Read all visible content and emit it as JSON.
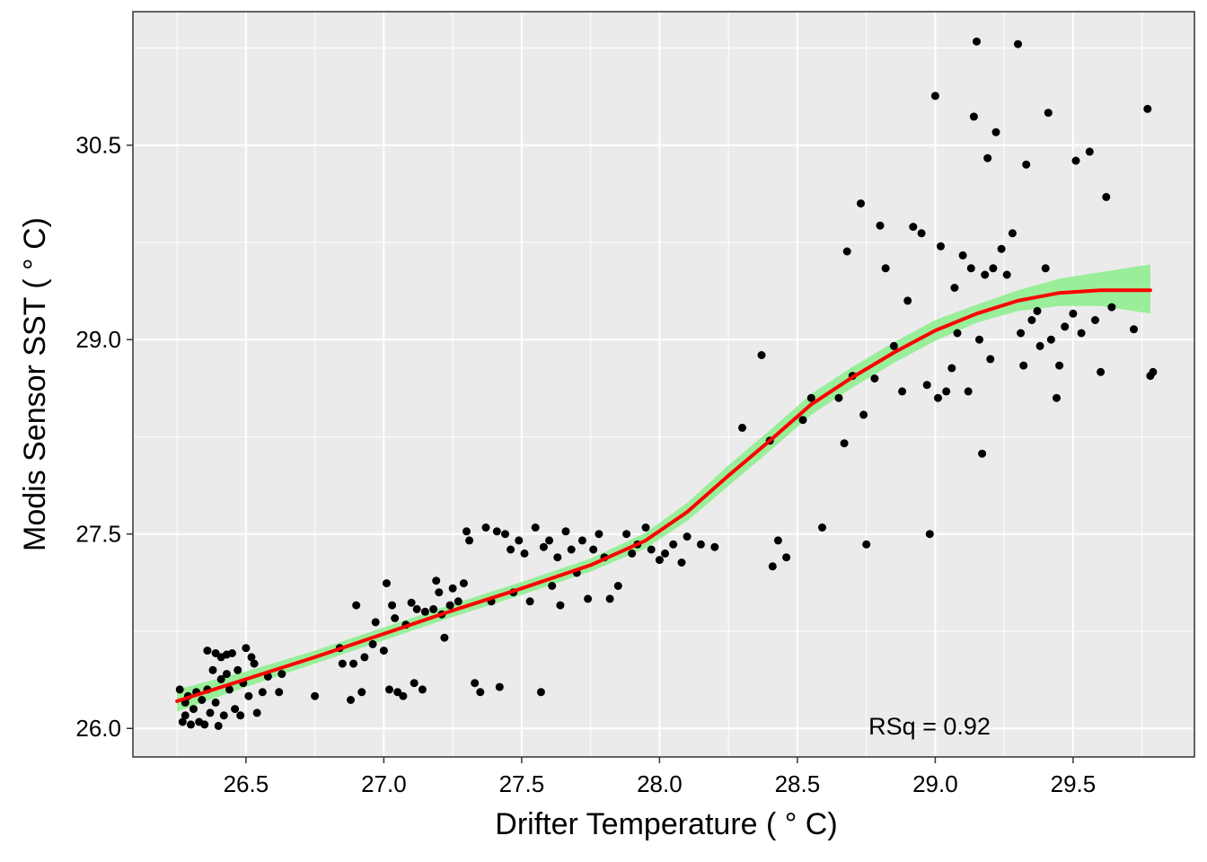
{
  "chart_data": {
    "type": "scatter",
    "title": "",
    "xlabel": "Drifter Temperature ( ° C)",
    "ylabel": "Modis Sensor SST ( ° C)",
    "xlim": [
      26.09,
      29.94
    ],
    "ylim": [
      25.78,
      31.53
    ],
    "x_ticks": [
      26.5,
      27.0,
      27.5,
      28.0,
      28.5,
      29.0,
      29.5
    ],
    "x_tick_labels": [
      "26.5",
      "27.0",
      "27.5",
      "28.0",
      "28.5",
      "29.0",
      "29.5"
    ],
    "y_ticks": [
      26.0,
      27.5,
      29.0,
      30.5
    ],
    "y_tick_labels": [
      "26.0",
      "27.5",
      "29.0",
      "30.5"
    ],
    "grid": true,
    "annotation": "RSq =  0.92",
    "colors": {
      "panel": "#EBEBEB",
      "grid": "#FFFFFF",
      "points": "#000000",
      "band": "#90EE90",
      "fit_line": "#FF0000"
    },
    "fit_line": {
      "x": [
        26.25,
        26.5,
        26.75,
        27.0,
        27.25,
        27.5,
        27.75,
        27.95,
        28.1,
        28.25,
        28.4,
        28.55,
        28.7,
        28.85,
        29.0,
        29.15,
        29.3,
        29.45,
        29.6,
        29.78
      ],
      "y": [
        26.21,
        26.38,
        26.55,
        26.73,
        26.91,
        27.08,
        27.26,
        27.45,
        27.67,
        27.95,
        28.22,
        28.5,
        28.71,
        28.9,
        29.07,
        29.2,
        29.3,
        29.36,
        29.38,
        29.38
      ]
    },
    "confidence_band": {
      "x": [
        26.25,
        26.5,
        26.75,
        27.0,
        27.25,
        27.5,
        27.75,
        27.95,
        28.1,
        28.25,
        28.4,
        28.55,
        28.7,
        28.85,
        29.0,
        29.15,
        29.3,
        29.45,
        29.6,
        29.78
      ],
      "lower": [
        26.13,
        26.32,
        26.5,
        26.68,
        26.86,
        27.03,
        27.21,
        27.39,
        27.6,
        27.87,
        28.14,
        28.42,
        28.63,
        28.82,
        28.99,
        29.13,
        29.22,
        29.26,
        29.26,
        29.2
      ],
      "upper": [
        26.3,
        26.44,
        26.6,
        26.78,
        26.96,
        27.13,
        27.31,
        27.51,
        27.74,
        28.03,
        28.3,
        28.58,
        28.79,
        28.98,
        29.15,
        29.27,
        29.38,
        29.47,
        29.52,
        29.58
      ]
    },
    "points": [
      [
        26.26,
        26.3
      ],
      [
        26.27,
        26.05
      ],
      [
        26.28,
        26.1
      ],
      [
        26.28,
        26.2
      ],
      [
        26.29,
        26.25
      ],
      [
        26.3,
        26.03
      ],
      [
        26.31,
        26.15
      ],
      [
        26.32,
        26.28
      ],
      [
        26.33,
        26.05
      ],
      [
        26.34,
        26.22
      ],
      [
        26.35,
        26.03
      ],
      [
        26.36,
        26.6
      ],
      [
        26.36,
        26.3
      ],
      [
        26.37,
        26.12
      ],
      [
        26.38,
        26.45
      ],
      [
        26.39,
        26.58
      ],
      [
        26.39,
        26.2
      ],
      [
        26.4,
        26.02
      ],
      [
        26.41,
        26.55
      ],
      [
        26.41,
        26.38
      ],
      [
        26.42,
        26.1
      ],
      [
        26.43,
        26.57
      ],
      [
        26.43,
        26.42
      ],
      [
        26.44,
        26.3
      ],
      [
        26.45,
        26.58
      ],
      [
        26.46,
        26.15
      ],
      [
        26.47,
        26.45
      ],
      [
        26.48,
        26.1
      ],
      [
        26.49,
        26.35
      ],
      [
        26.5,
        26.62
      ],
      [
        26.51,
        26.25
      ],
      [
        26.52,
        26.55
      ],
      [
        26.53,
        26.5
      ],
      [
        26.54,
        26.12
      ],
      [
        26.56,
        26.28
      ],
      [
        26.58,
        26.4
      ],
      [
        26.62,
        26.28
      ],
      [
        26.63,
        26.42
      ],
      [
        26.75,
        26.25
      ],
      [
        26.84,
        26.62
      ],
      [
        26.85,
        26.5
      ],
      [
        26.88,
        26.22
      ],
      [
        26.89,
        26.5
      ],
      [
        26.9,
        26.95
      ],
      [
        26.92,
        26.28
      ],
      [
        26.93,
        26.55
      ],
      [
        26.96,
        26.65
      ],
      [
        26.97,
        26.82
      ],
      [
        27.0,
        26.6
      ],
      [
        27.01,
        27.12
      ],
      [
        27.02,
        26.3
      ],
      [
        27.03,
        26.95
      ],
      [
        27.04,
        26.85
      ],
      [
        27.05,
        26.28
      ],
      [
        27.07,
        26.25
      ],
      [
        27.08,
        26.8
      ],
      [
        27.1,
        26.97
      ],
      [
        27.11,
        26.35
      ],
      [
        27.12,
        26.92
      ],
      [
        27.14,
        26.3
      ],
      [
        27.15,
        26.9
      ],
      [
        27.18,
        26.92
      ],
      [
        27.19,
        27.14
      ],
      [
        27.2,
        27.05
      ],
      [
        27.21,
        26.88
      ],
      [
        27.22,
        26.7
      ],
      [
        27.24,
        26.95
      ],
      [
        27.25,
        27.08
      ],
      [
        27.27,
        26.98
      ],
      [
        27.29,
        27.12
      ],
      [
        27.3,
        27.52
      ],
      [
        27.31,
        27.45
      ],
      [
        27.33,
        26.35
      ],
      [
        27.35,
        26.28
      ],
      [
        27.37,
        27.55
      ],
      [
        27.39,
        26.98
      ],
      [
        27.41,
        27.52
      ],
      [
        27.42,
        26.32
      ],
      [
        27.44,
        27.5
      ],
      [
        27.46,
        27.38
      ],
      [
        27.47,
        27.05
      ],
      [
        27.49,
        27.45
      ],
      [
        27.51,
        27.35
      ],
      [
        27.53,
        26.98
      ],
      [
        27.55,
        27.55
      ],
      [
        27.57,
        26.28
      ],
      [
        27.58,
        27.4
      ],
      [
        27.6,
        27.45
      ],
      [
        27.61,
        27.1
      ],
      [
        27.63,
        27.32
      ],
      [
        27.64,
        26.95
      ],
      [
        27.66,
        27.52
      ],
      [
        27.68,
        27.38
      ],
      [
        27.7,
        27.2
      ],
      [
        27.72,
        27.45
      ],
      [
        27.74,
        27.0
      ],
      [
        27.76,
        27.38
      ],
      [
        27.78,
        27.5
      ],
      [
        27.8,
        27.32
      ],
      [
        27.82,
        27.0
      ],
      [
        27.85,
        27.1
      ],
      [
        27.88,
        27.5
      ],
      [
        27.9,
        27.35
      ],
      [
        27.92,
        27.42
      ],
      [
        27.95,
        27.55
      ],
      [
        27.97,
        27.38
      ],
      [
        28.0,
        27.3
      ],
      [
        28.02,
        27.35
      ],
      [
        28.05,
        27.42
      ],
      [
        28.08,
        27.28
      ],
      [
        28.1,
        27.48
      ],
      [
        28.15,
        27.42
      ],
      [
        28.2,
        27.4
      ],
      [
        28.3,
        28.32
      ],
      [
        28.37,
        28.88
      ],
      [
        28.4,
        28.22
      ],
      [
        28.41,
        27.25
      ],
      [
        28.43,
        27.45
      ],
      [
        28.46,
        27.32
      ],
      [
        28.52,
        28.38
      ],
      [
        28.55,
        28.55
      ],
      [
        28.59,
        27.55
      ],
      [
        28.65,
        28.55
      ],
      [
        28.67,
        28.2
      ],
      [
        28.68,
        29.68
      ],
      [
        28.7,
        28.72
      ],
      [
        28.73,
        30.05
      ],
      [
        28.74,
        28.42
      ],
      [
        28.75,
        27.42
      ],
      [
        28.78,
        28.7
      ],
      [
        28.8,
        29.88
      ],
      [
        28.82,
        29.55
      ],
      [
        28.85,
        28.95
      ],
      [
        28.88,
        28.6
      ],
      [
        28.9,
        29.3
      ],
      [
        28.92,
        29.87
      ],
      [
        28.95,
        29.82
      ],
      [
        28.97,
        28.65
      ],
      [
        28.98,
        27.5
      ],
      [
        29.0,
        30.88
      ],
      [
        29.01,
        28.55
      ],
      [
        29.02,
        29.72
      ],
      [
        29.04,
        28.6
      ],
      [
        29.06,
        28.78
      ],
      [
        29.07,
        29.4
      ],
      [
        29.08,
        29.05
      ],
      [
        29.1,
        29.65
      ],
      [
        29.12,
        28.6
      ],
      [
        29.13,
        29.55
      ],
      [
        29.14,
        30.72
      ],
      [
        29.15,
        31.3
      ],
      [
        29.16,
        29.0
      ],
      [
        29.17,
        28.12
      ],
      [
        29.18,
        29.5
      ],
      [
        29.19,
        30.4
      ],
      [
        29.2,
        28.85
      ],
      [
        29.21,
        29.55
      ],
      [
        29.22,
        30.6
      ],
      [
        29.24,
        29.7
      ],
      [
        29.26,
        29.5
      ],
      [
        29.28,
        29.82
      ],
      [
        29.3,
        31.28
      ],
      [
        29.31,
        29.05
      ],
      [
        29.32,
        28.8
      ],
      [
        29.33,
        30.35
      ],
      [
        29.35,
        29.15
      ],
      [
        29.37,
        29.22
      ],
      [
        29.38,
        28.95
      ],
      [
        29.4,
        29.55
      ],
      [
        29.41,
        30.75
      ],
      [
        29.42,
        29.0
      ],
      [
        29.44,
        28.55
      ],
      [
        29.45,
        28.8
      ],
      [
        29.47,
        29.1
      ],
      [
        29.5,
        29.2
      ],
      [
        29.51,
        30.38
      ],
      [
        29.53,
        29.05
      ],
      [
        29.56,
        30.45
      ],
      [
        29.58,
        29.15
      ],
      [
        29.6,
        28.75
      ],
      [
        29.62,
        30.1
      ],
      [
        29.64,
        29.25
      ],
      [
        29.72,
        29.08
      ],
      [
        29.77,
        30.78
      ],
      [
        29.78,
        28.72
      ],
      [
        29.79,
        28.75
      ]
    ]
  }
}
